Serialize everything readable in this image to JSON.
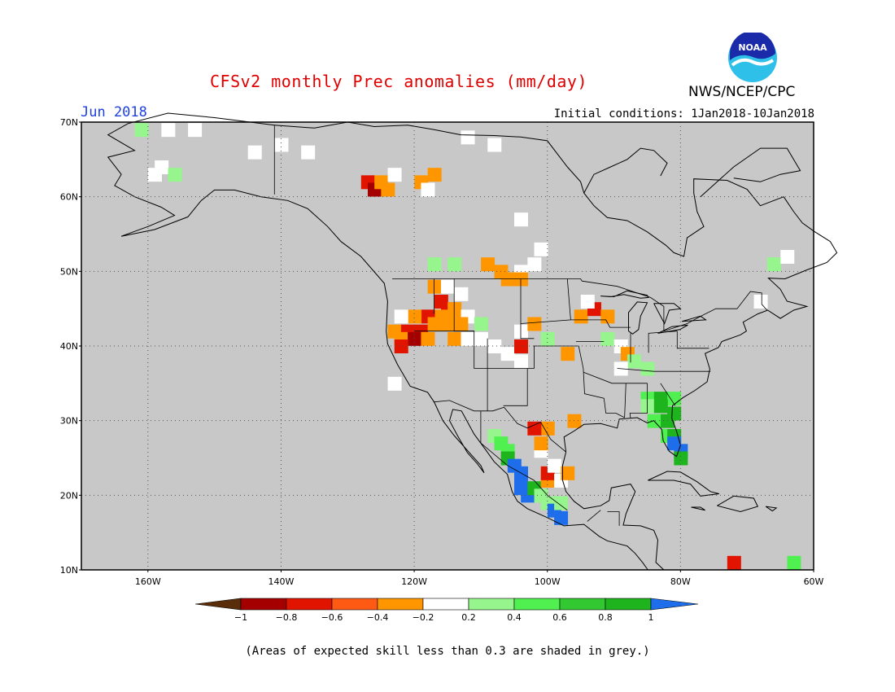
{
  "header": {
    "title": "CFSv2 monthly Prec anomalies (mm/day)",
    "agency": "NWS/NCEP/CPC",
    "logo_text": "NOAA",
    "valid_month": "Jun 2018",
    "initial_conditions": "Initial conditions: 1Jan2018-10Jan2018"
  },
  "map": {
    "lon_range": [
      -170,
      -60
    ],
    "lat_range": [
      10,
      70
    ],
    "lat_ticks": [
      {
        "lat": 70,
        "label": "70N"
      },
      {
        "lat": 60,
        "label": "60N"
      },
      {
        "lat": 50,
        "label": "50N"
      },
      {
        "lat": 40,
        "label": "40N"
      },
      {
        "lat": 30,
        "label": "30N"
      },
      {
        "lat": 20,
        "label": "20N"
      },
      {
        "lat": 10,
        "label": "10N"
      }
    ],
    "lon_ticks": [
      {
        "lon": -160,
        "label": "160W"
      },
      {
        "lon": -140,
        "label": "140W"
      },
      {
        "lon": -120,
        "label": "120W"
      },
      {
        "lon": -100,
        "label": "100W"
      },
      {
        "lon": -80,
        "label": "80W"
      },
      {
        "lon": -60,
        "label": "60W"
      }
    ],
    "background_color": "#c8c8c8",
    "grid": "dotted",
    "anomaly_cells": [
      {
        "lon": -161,
        "lat": 69,
        "color": "#96f58c"
      },
      {
        "lon": -157,
        "lat": 69,
        "color": "#ffffff"
      },
      {
        "lon": -153,
        "lat": 69,
        "color": "#ffffff"
      },
      {
        "lon": -140,
        "lat": 67,
        "color": "#ffffff"
      },
      {
        "lon": -136,
        "lat": 66,
        "color": "#ffffff"
      },
      {
        "lon": -144,
        "lat": 66,
        "color": "#ffffff"
      },
      {
        "lon": -158,
        "lat": 64,
        "color": "#ffffff"
      },
      {
        "lon": -156,
        "lat": 63,
        "color": "#96f58c"
      },
      {
        "lon": -159,
        "lat": 63,
        "color": "#ffffff"
      },
      {
        "lon": -127,
        "lat": 62,
        "color": "#e11400"
      },
      {
        "lon": -126,
        "lat": 61,
        "color": "#a50000"
      },
      {
        "lon": -124,
        "lat": 61,
        "color": "#ff9600"
      },
      {
        "lon": -125,
        "lat": 62,
        "color": "#ff9600"
      },
      {
        "lon": -123,
        "lat": 63,
        "color": "#ffffff"
      },
      {
        "lon": -119,
        "lat": 62,
        "color": "#ff9600"
      },
      {
        "lon": -117,
        "lat": 63,
        "color": "#ff9600"
      },
      {
        "lon": -118,
        "lat": 61,
        "color": "#ffffff"
      },
      {
        "lon": -112,
        "lat": 68,
        "color": "#ffffff"
      },
      {
        "lon": -108,
        "lat": 67,
        "color": "#ffffff"
      },
      {
        "lon": -104,
        "lat": 57,
        "color": "#ffffff"
      },
      {
        "lon": -101,
        "lat": 53,
        "color": "#ffffff"
      },
      {
        "lon": -117,
        "lat": 51,
        "color": "#96f58c"
      },
      {
        "lon": -114,
        "lat": 51,
        "color": "#96f58c"
      },
      {
        "lon": -109,
        "lat": 51,
        "color": "#ff9600"
      },
      {
        "lon": -107,
        "lat": 50,
        "color": "#ff9600"
      },
      {
        "lon": -104,
        "lat": 50,
        "color": "#ffffff"
      },
      {
        "lon": -102,
        "lat": 51,
        "color": "#ffffff"
      },
      {
        "lon": -104,
        "lat": 49,
        "color": "#ff9600"
      },
      {
        "lon": -106,
        "lat": 49,
        "color": "#ff9600"
      },
      {
        "lon": -117,
        "lat": 48,
        "color": "#ff9600"
      },
      {
        "lon": -115,
        "lat": 48,
        "color": "#ffffff"
      },
      {
        "lon": -113,
        "lat": 47,
        "color": "#ffffff"
      },
      {
        "lon": -116,
        "lat": 46,
        "color": "#e11400"
      },
      {
        "lon": -115,
        "lat": 45,
        "color": "#e11400"
      },
      {
        "lon": -114,
        "lat": 45,
        "color": "#ff9600"
      },
      {
        "lon": -116,
        "lat": 44,
        "color": "#ff9600"
      },
      {
        "lon": -114,
        "lat": 44,
        "color": "#ff9600"
      },
      {
        "lon": -112,
        "lat": 44,
        "color": "#ffffff"
      },
      {
        "lon": -118,
        "lat": 44,
        "color": "#e11400"
      },
      {
        "lon": -120,
        "lat": 44,
        "color": "#ff9600"
      },
      {
        "lon": -122,
        "lat": 44,
        "color": "#ffffff"
      },
      {
        "lon": -123,
        "lat": 42,
        "color": "#ff9600"
      },
      {
        "lon": -121,
        "lat": 42,
        "color": "#e11400"
      },
      {
        "lon": -119,
        "lat": 42,
        "color": "#e11400"
      },
      {
        "lon": -117,
        "lat": 43,
        "color": "#ff9600"
      },
      {
        "lon": -115,
        "lat": 43,
        "color": "#ff9600"
      },
      {
        "lon": -113,
        "lat": 43,
        "color": "#ff9600"
      },
      {
        "lon": -122,
        "lat": 41,
        "color": "#ff9600"
      },
      {
        "lon": -120,
        "lat": 41,
        "color": "#a50000"
      },
      {
        "lon": -118,
        "lat": 41,
        "color": "#ff9600"
      },
      {
        "lon": -122,
        "lat": 40,
        "color": "#e11400"
      },
      {
        "lon": -114,
        "lat": 41,
        "color": "#ff9600"
      },
      {
        "lon": -112,
        "lat": 41,
        "color": "#ffffff"
      },
      {
        "lon": -110,
        "lat": 41,
        "color": "#ffffff"
      },
      {
        "lon": -108,
        "lat": 40,
        "color": "#ffffff"
      },
      {
        "lon": -106,
        "lat": 39,
        "color": "#ffffff"
      },
      {
        "lon": -104,
        "lat": 40,
        "color": "#e11400"
      },
      {
        "lon": -104,
        "lat": 38,
        "color": "#ffffff"
      },
      {
        "lon": -110,
        "lat": 43,
        "color": "#96f58c"
      },
      {
        "lon": -104,
        "lat": 42,
        "color": "#ffffff"
      },
      {
        "lon": -100,
        "lat": 41,
        "color": "#96f58c"
      },
      {
        "lon": -102,
        "lat": 43,
        "color": "#ff9600"
      },
      {
        "lon": -97,
        "lat": 39,
        "color": "#ff9600"
      },
      {
        "lon": -95,
        "lat": 44,
        "color": "#ff9600"
      },
      {
        "lon": -93,
        "lat": 45,
        "color": "#e11400"
      },
      {
        "lon": -91,
        "lat": 44,
        "color": "#ff9600"
      },
      {
        "lon": -94,
        "lat": 46,
        "color": "#ffffff"
      },
      {
        "lon": -91,
        "lat": 41,
        "color": "#96f58c"
      },
      {
        "lon": -89,
        "lat": 40,
        "color": "#ffffff"
      },
      {
        "lon": -88,
        "lat": 39,
        "color": "#ff9600"
      },
      {
        "lon": -87,
        "lat": 38,
        "color": "#96f58c"
      },
      {
        "lon": -89,
        "lat": 37,
        "color": "#ffffff"
      },
      {
        "lon": -85,
        "lat": 37,
        "color": "#96f58c"
      },
      {
        "lon": -85,
        "lat": 33,
        "color": "#50f050"
      },
      {
        "lon": -83,
        "lat": 33,
        "color": "#1eb41e"
      },
      {
        "lon": -81,
        "lat": 33,
        "color": "#50f050"
      },
      {
        "lon": -85,
        "lat": 32,
        "color": "#96f58c"
      },
      {
        "lon": -83,
        "lat": 32,
        "color": "#1eb41e"
      },
      {
        "lon": -81,
        "lat": 31,
        "color": "#1eb41e"
      },
      {
        "lon": -84,
        "lat": 30,
        "color": "#50f050"
      },
      {
        "lon": -82,
        "lat": 30,
        "color": "#1eb41e"
      },
      {
        "lon": -82,
        "lat": 28,
        "color": "#50f050"
      },
      {
        "lon": -81,
        "lat": 28,
        "color": "#1eb41e"
      },
      {
        "lon": -81,
        "lat": 27,
        "color": "#1e6eeb"
      },
      {
        "lon": -80,
        "lat": 26,
        "color": "#1e6eeb"
      },
      {
        "lon": -80,
        "lat": 25,
        "color": "#1eb41e"
      },
      {
        "lon": -108,
        "lat": 28,
        "color": "#96f58c"
      },
      {
        "lon": -107,
        "lat": 27,
        "color": "#50f050"
      },
      {
        "lon": -106,
        "lat": 26,
        "color": "#50f050"
      },
      {
        "lon": -106,
        "lat": 25,
        "color": "#1eb41e"
      },
      {
        "lon": -105,
        "lat": 24,
        "color": "#1e6eeb"
      },
      {
        "lon": -104,
        "lat": 23,
        "color": "#1e6eeb"
      },
      {
        "lon": -104,
        "lat": 22,
        "color": "#1e6eeb"
      },
      {
        "lon": -104,
        "lat": 21,
        "color": "#1e6eeb"
      },
      {
        "lon": -103,
        "lat": 20,
        "color": "#1e6eeb"
      },
      {
        "lon": -102,
        "lat": 21,
        "color": "#1eb41e"
      },
      {
        "lon": -101,
        "lat": 20,
        "color": "#96f58c"
      },
      {
        "lon": -100,
        "lat": 19,
        "color": "#96f58c"
      },
      {
        "lon": -99,
        "lat": 18,
        "color": "#1e6eeb"
      },
      {
        "lon": -98,
        "lat": 17,
        "color": "#1e6eeb"
      },
      {
        "lon": -98,
        "lat": 19,
        "color": "#96f58c"
      },
      {
        "lon": -100,
        "lat": 22,
        "color": "#ff9600"
      },
      {
        "lon": -100,
        "lat": 23,
        "color": "#e11400"
      },
      {
        "lon": -99,
        "lat": 24,
        "color": "#ffffff"
      },
      {
        "lon": -98,
        "lat": 22,
        "color": "#ffffff"
      },
      {
        "lon": -97,
        "lat": 23,
        "color": "#ff9600"
      },
      {
        "lon": -101,
        "lat": 26,
        "color": "#ffffff"
      },
      {
        "lon": -101,
        "lat": 27,
        "color": "#ff9600"
      },
      {
        "lon": -100,
        "lat": 29,
        "color": "#ff9600"
      },
      {
        "lon": -102,
        "lat": 29,
        "color": "#e11400"
      },
      {
        "lon": -96,
        "lat": 30,
        "color": "#ff9600"
      },
      {
        "lon": -123,
        "lat": 35,
        "color": "#ffffff"
      },
      {
        "lon": -66,
        "lat": 51,
        "color": "#96f58c"
      },
      {
        "lon": -64,
        "lat": 52,
        "color": "#ffffff"
      },
      {
        "lon": -68,
        "lat": 46,
        "color": "#ffffff"
      },
      {
        "lon": -72,
        "lat": 11,
        "color": "#e11400"
      },
      {
        "lon": -63,
        "lat": 11,
        "color": "#50f050"
      }
    ]
  },
  "colorbar": {
    "colors": [
      "#5a2d0a",
      "#a50000",
      "#e11400",
      "#ff5a14",
      "#ff9600",
      "#ffffff",
      "#96f58c",
      "#50f050",
      "#32c832",
      "#1eb41e",
      "#1e6eeb"
    ],
    "labels": [
      "−1",
      "−0.8",
      "−0.6",
      "−0.4",
      "−0.2",
      "0.2",
      "0.4",
      "0.6",
      "0.8",
      "1"
    ]
  },
  "footer": {
    "note": "(Areas of expected skill less than 0.3 are shaded in grey.)"
  }
}
